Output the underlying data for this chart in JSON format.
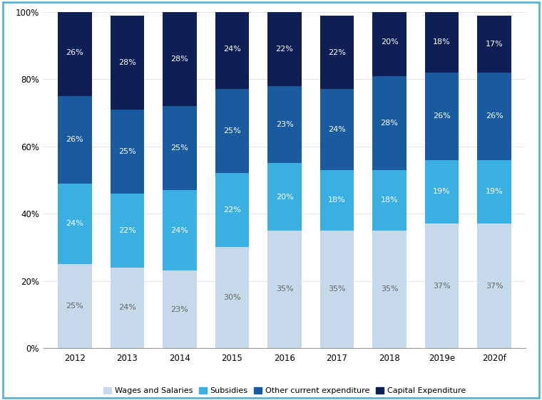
{
  "categories": [
    "2012",
    "2013",
    "2014",
    "2015",
    "2016",
    "2017",
    "2018",
    "2019e",
    "2020f"
  ],
  "wages_salaries": [
    25,
    24,
    23,
    30,
    35,
    35,
    35,
    37,
    37
  ],
  "subsidies": [
    24,
    22,
    24,
    22,
    20,
    18,
    18,
    19,
    19
  ],
  "other_current": [
    26,
    25,
    25,
    25,
    23,
    24,
    28,
    26,
    26
  ],
  "capital_expenditure": [
    26,
    28,
    28,
    24,
    22,
    22,
    20,
    18,
    17
  ],
  "color_wages": "#c5d9ea",
  "color_subsidies": "#3ab0e2",
  "color_other": "#1a5ba0",
  "color_capital": "#0d1f54",
  "label_wages": "Wages and Salaries",
  "label_subsidies": "Subsidies",
  "label_other": "Other current expenditure",
  "label_capital": "Capital Expenditure",
  "ylim": [
    0,
    100
  ],
  "background_color": "#ffffff",
  "border_color": "#5ab4d6",
  "label_fontsize": 8,
  "tick_fontsize": 8.5,
  "legend_fontsize": 8
}
